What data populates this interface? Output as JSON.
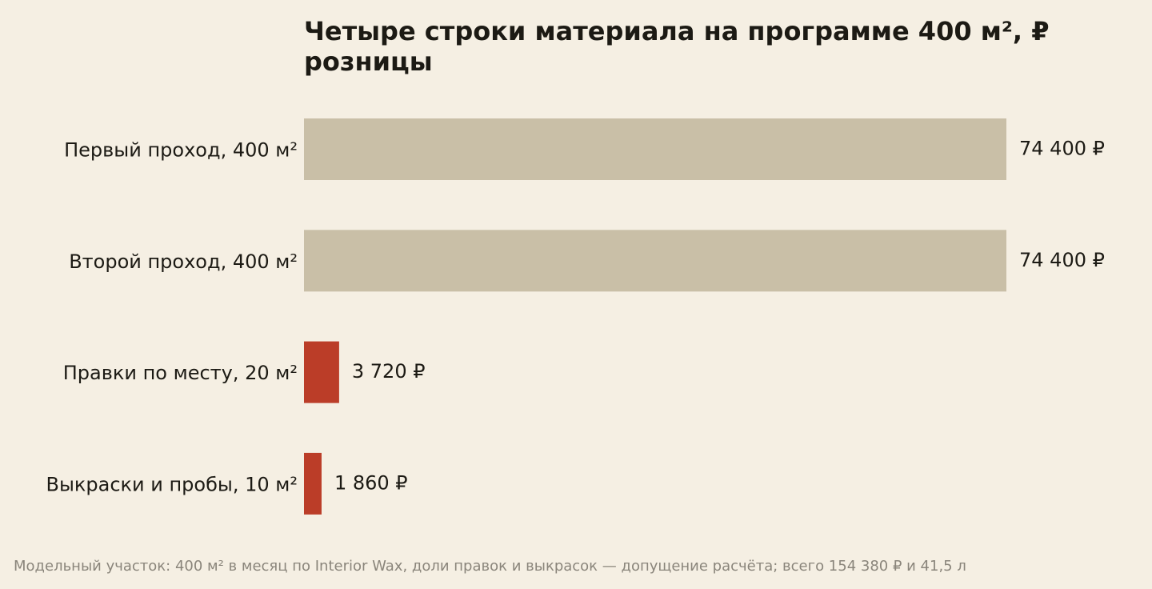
{
  "title": "Четыре строки материала на программе 400 м², ₽ розницы",
  "footnote": "Модельный участок: 400 м² в месяц по Interior Wax, доли правок и выкрасок — допущение расчёта; всего 154 380 ₽ и 41,5 л",
  "chart_data": {
    "type": "bar",
    "orientation": "horizontal",
    "categories": [
      "Первый проход, 400 м²",
      "Второй проход, 400 м²",
      "Правки по месту, 20 м²",
      "Выкраски и пробы, 10 м²"
    ],
    "values": [
      74400,
      74400,
      3720,
      1860
    ],
    "value_labels": [
      "74 400 ₽",
      "74 400 ₽",
      "3 720 ₽",
      "1 860 ₽"
    ],
    "colors": [
      "#c9bfa7",
      "#c9bfa7",
      "#bb3d28",
      "#bb3d28"
    ],
    "xlim": [
      0,
      74400
    ],
    "grid": false,
    "legend": "none"
  }
}
